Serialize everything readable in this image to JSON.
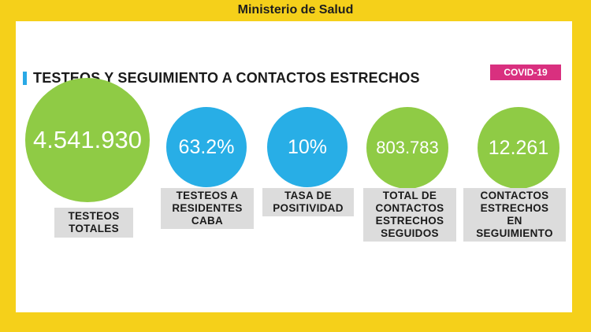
{
  "header": {
    "ministry": "Ministerio de Salud"
  },
  "section": {
    "title": "TESTEOS Y SEGUIMIENTO A CONTACTOS ESTRECHOS",
    "tag": "COVID-19"
  },
  "stats": [
    {
      "value": "4.541.930",
      "label_lines": [
        "TESTEOS",
        "TOTALES"
      ],
      "color": "#8fcb45"
    },
    {
      "value": "63.2%",
      "label_lines": [
        "TESTEOS A",
        "RESIDENTES",
        "CABA"
      ],
      "color": "#28aee6"
    },
    {
      "value": "10%",
      "label_lines": [
        "TASA DE",
        "POSITIVIDAD"
      ],
      "color": "#28aee6"
    },
    {
      "value": "803.783",
      "label_lines": [
        "TOTAL DE",
        "CONTACTOS",
        "ESTRECHOS",
        "SEGUIDOS"
      ],
      "color": "#8fcb45"
    },
    {
      "value": "12.261",
      "label_lines": [
        "CONTACTOS",
        "ESTRECHOS",
        "EN",
        "SEGUIMIENTO"
      ],
      "color": "#8fcb45"
    }
  ],
  "colors": {
    "background": "#f5d01a",
    "accent_bar": "#29a9e6",
    "tag": "#d9307f"
  }
}
